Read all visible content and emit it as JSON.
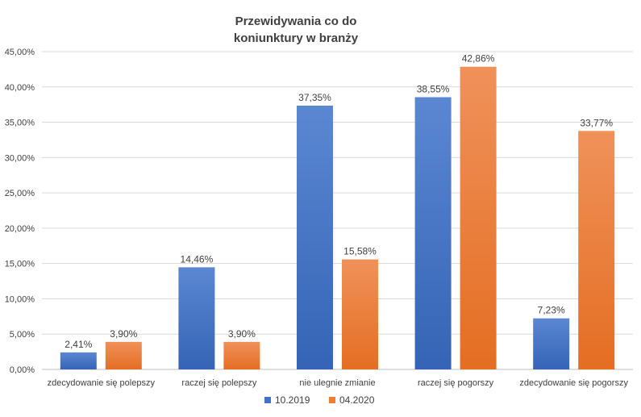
{
  "chart_data": {
    "type": "bar",
    "title_lines": [
      "Przewidywania co do",
      "koniunktury w branży"
    ],
    "categories": [
      "zdecydowanie się polepszy",
      "raczej się polepszy",
      "nie ulegnie zmianie",
      "raczej się pogorszy",
      "zdecydowanie się pogorszy"
    ],
    "series": [
      {
        "name": "10.2019",
        "color": "#4472C4",
        "values": [
          2.41,
          14.46,
          37.35,
          38.55,
          7.23
        ],
        "labels": [
          "2,41%",
          "14,46%",
          "37,35%",
          "38,55%",
          "7,23%"
        ]
      },
      {
        "name": "04.2020",
        "color": "#ED7D31",
        "values": [
          3.9,
          3.9,
          15.58,
          42.86,
          33.77
        ],
        "labels": [
          "3,90%",
          "3,90%",
          "15,58%",
          "42,86%",
          "33,77%"
        ]
      }
    ],
    "ylim": [
      0,
      45
    ],
    "yticks": [
      0,
      5,
      10,
      15,
      20,
      25,
      30,
      35,
      40,
      45
    ],
    "ytick_labels": [
      "0,00%",
      "5,00%",
      "10,00%",
      "15,00%",
      "20,00%",
      "25,00%",
      "30,00%",
      "35,00%",
      "40,00%",
      "45,00%"
    ],
    "grid": true,
    "legend_position": "bottom"
  }
}
